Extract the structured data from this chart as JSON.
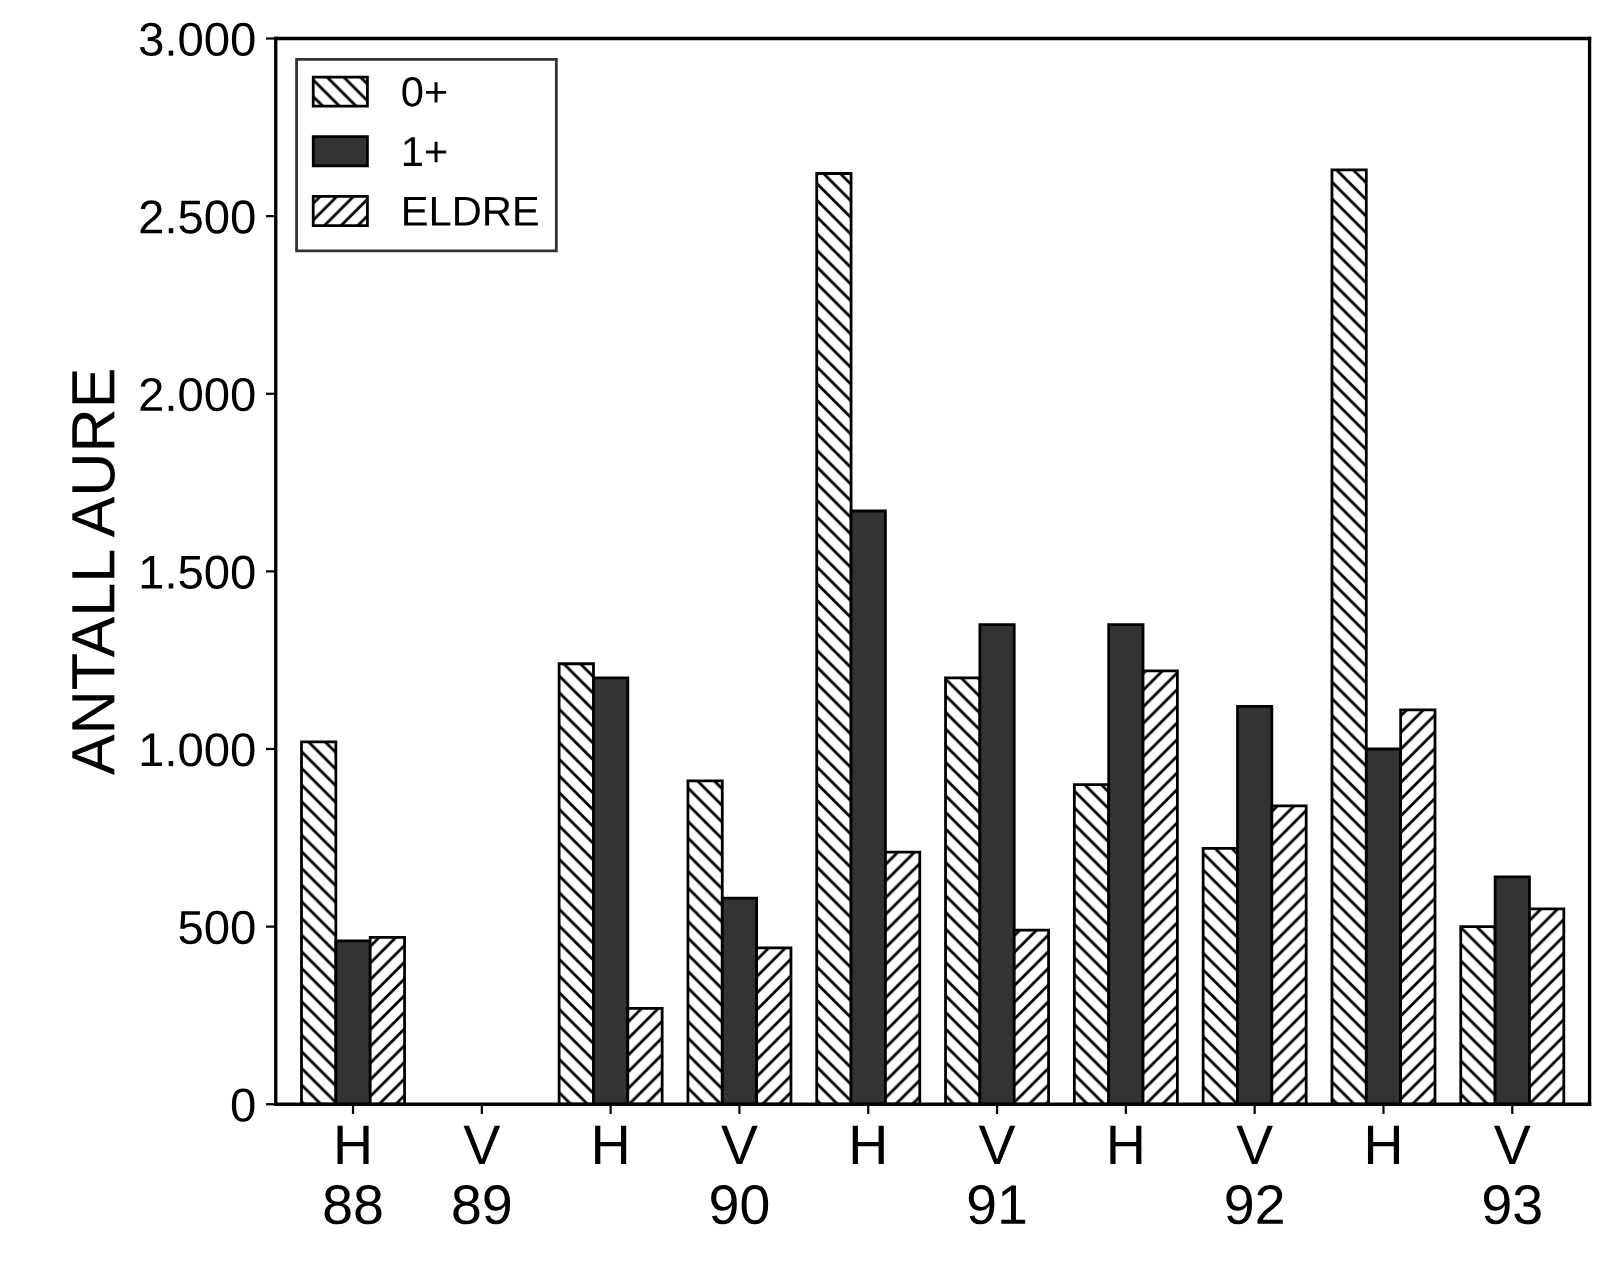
{
  "chart_data": {
    "type": "bar",
    "ylabel": "ANTALL AURE",
    "categories": [
      "H\n88",
      "V\n89",
      "H",
      "V\n90",
      "H",
      "V\n91",
      "H",
      "V\n92",
      "H",
      "V\n93"
    ],
    "series": [
      {
        "name": "0+",
        "color": "#000000",
        "values": [
          1020,
          null,
          1240,
          910,
          2620,
          1200,
          900,
          720,
          2630,
          500
        ]
      },
      {
        "name": "1+",
        "color": "#333333",
        "values": [
          460,
          null,
          1200,
          580,
          1670,
          1350,
          1350,
          1120,
          1000,
          640
        ]
      },
      {
        "name": "ELDRE",
        "color": "#000000",
        "values": [
          470,
          null,
          270,
          440,
          710,
          490,
          1220,
          840,
          1110,
          550
        ]
      }
    ],
    "ylim": [
      0,
      3000
    ],
    "yticks": [
      0,
      500,
      {
        "value": 1000,
        "label": "1.000"
      },
      {
        "value": 1500,
        "label": "1.500"
      },
      {
        "value": 2000,
        "label": "2.000"
      },
      {
        "value": 2500,
        "label": "2.500"
      },
      {
        "value": 3000,
        "label": "3.000"
      }
    ],
    "legend": "top left",
    "grid": false
  }
}
